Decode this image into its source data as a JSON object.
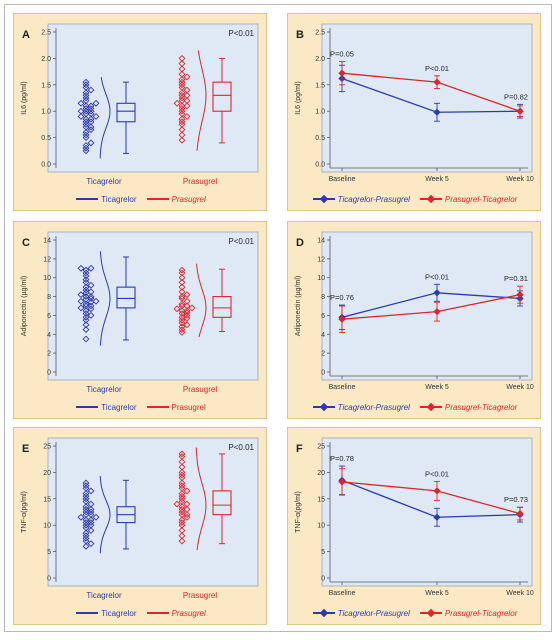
{
  "colors": {
    "ticagrelor": "#2e3aa8",
    "prasugrel": "#d8272e"
  },
  "chart_data": [
    {
      "id": "A",
      "panel_label": "A",
      "type": "box",
      "ylabel": "IL6 (pg/ml)",
      "ylim": [
        0,
        2.5
      ],
      "yticks": [
        "0.0",
        "0.5",
        "1.0",
        "1.5",
        "2.0",
        "2.5"
      ],
      "pvalue": "P<0.01",
      "groups": [
        {
          "name": "Ticagrelor",
          "min": 0.2,
          "q1": 0.8,
          "median": 1.0,
          "q3": 1.15,
          "max": 1.55,
          "points": [
            0.25,
            0.3,
            0.35,
            0.4,
            0.5,
            0.55,
            0.6,
            0.65,
            0.7,
            0.7,
            0.75,
            0.8,
            0.8,
            0.85,
            0.85,
            0.9,
            0.9,
            0.95,
            0.95,
            1.0,
            1.0,
            1.0,
            1.05,
            1.05,
            1.1,
            1.1,
            1.15,
            1.15,
            1.2,
            1.25,
            1.3,
            1.35,
            1.4,
            1.45,
            1.5,
            1.55
          ]
        },
        {
          "name": "Prasugrel",
          "min": 0.4,
          "q1": 1.0,
          "median": 1.3,
          "q3": 1.55,
          "max": 2.0,
          "points": [
            0.45,
            0.55,
            0.65,
            0.75,
            0.8,
            0.85,
            0.9,
            0.95,
            1.0,
            1.05,
            1.1,
            1.1,
            1.15,
            1.2,
            1.2,
            1.25,
            1.3,
            1.3,
            1.35,
            1.4,
            1.45,
            1.5,
            1.55,
            1.6,
            1.65,
            1.7,
            1.8,
            1.9,
            2.0
          ]
        }
      ],
      "legend": [
        "Ticagrelor",
        "Prasugrel"
      ]
    },
    {
      "id": "B",
      "panel_label": "B",
      "type": "line",
      "ylabel": "IL6 (pg/ml)",
      "ylim": [
        0,
        2.5
      ],
      "yticks": [
        "0.0",
        "0.5",
        "1.0",
        "1.5",
        "2.0",
        "2.5"
      ],
      "categories": [
        "Baseline",
        "Week 5",
        "Week 10"
      ],
      "pvalues": [
        "P=0.05",
        "P<0.01",
        "P=0.82"
      ],
      "series": [
        {
          "name": "Ticagrelor-Prasugrel",
          "values": [
            1.62,
            0.98,
            1.0
          ],
          "errors": [
            0.25,
            0.17,
            0.13
          ]
        },
        {
          "name": "Prasugrel-Ticagrelor",
          "values": [
            1.72,
            1.55,
            1.0
          ],
          "errors": [
            0.22,
            0.12,
            0.1
          ]
        }
      ]
    },
    {
      "id": "C",
      "panel_label": "C",
      "type": "box",
      "ylabel": "Adiponectin (µg/ml)",
      "ylim": [
        0,
        14
      ],
      "yticks": [
        "0",
        "2",
        "4",
        "6",
        "8",
        "10",
        "12",
        "14"
      ],
      "pvalue": "P<0.01",
      "groups": [
        {
          "name": "Ticagrelor",
          "min": 3.4,
          "q1": 6.8,
          "median": 7.8,
          "q3": 9.0,
          "max": 12.2,
          "points": [
            3.5,
            4.5,
            5.0,
            5.5,
            5.8,
            6.0,
            6.2,
            6.5,
            6.7,
            6.8,
            7.0,
            7.0,
            7.2,
            7.4,
            7.5,
            7.5,
            7.7,
            7.8,
            8.0,
            8.0,
            8.2,
            8.4,
            8.5,
            8.7,
            9.0,
            9.2,
            9.5,
            9.8,
            10.2,
            10.5,
            10.8,
            11.0,
            11.0
          ]
        },
        {
          "name": "Prasugrel",
          "min": 4.3,
          "q1": 5.8,
          "median": 6.8,
          "q3": 8.0,
          "max": 10.9,
          "points": [
            4.2,
            4.5,
            4.8,
            5.0,
            5.2,
            5.5,
            5.7,
            5.8,
            6.0,
            6.2,
            6.3,
            6.5,
            6.5,
            6.7,
            6.8,
            7.0,
            7.0,
            7.2,
            7.5,
            7.8,
            8.0,
            8.2,
            8.5,
            9.0,
            9.5,
            10.0,
            10.5,
            10.8
          ]
        }
      ],
      "legend": [
        "Ticagrelor",
        "Prasugrel"
      ]
    },
    {
      "id": "D",
      "panel_label": "D",
      "type": "line",
      "ylabel": "Adiponectin (µg/ml)",
      "ylim": [
        0,
        14
      ],
      "yticks": [
        "0",
        "2",
        "4",
        "6",
        "8",
        "10",
        "12",
        "14"
      ],
      "categories": [
        "Baseline",
        "Week 5",
        "Week 10"
      ],
      "pvalues": [
        "P=0.76",
        "P<0.01",
        "P=0.31"
      ],
      "series": [
        {
          "name": "Ticagrelor-Prasugrel",
          "values": [
            5.8,
            8.4,
            7.8
          ],
          "errors": [
            1.3,
            0.9,
            0.8
          ]
        },
        {
          "name": "Prasugrel-Ticagrelor",
          "values": [
            5.6,
            6.4,
            8.2
          ],
          "errors": [
            1.4,
            1.0,
            0.9
          ]
        }
      ]
    },
    {
      "id": "E",
      "panel_label": "E",
      "type": "box",
      "ylabel": "TNF-α(pg/ml)",
      "ylim": [
        0,
        25
      ],
      "yticks": [
        "0",
        "5",
        "10",
        "15",
        "20",
        "25"
      ],
      "pvalue": "P<0.01",
      "groups": [
        {
          "name": "Ticagrelor",
          "min": 5.5,
          "q1": 10.5,
          "median": 12.0,
          "q3": 13.5,
          "max": 18.5,
          "points": [
            6,
            6.5,
            7,
            7.5,
            8,
            8.5,
            9,
            9.5,
            10,
            10,
            10.5,
            10.5,
            11,
            11,
            11.5,
            11.5,
            12,
            12,
            12.5,
            12.5,
            13,
            13,
            13.5,
            14,
            14.5,
            15,
            15.5,
            16,
            16.5,
            17,
            17.5,
            18
          ]
        },
        {
          "name": "Prasugrel",
          "min": 6.5,
          "q1": 12.0,
          "median": 13.8,
          "q3": 16.5,
          "max": 23.5,
          "points": [
            7,
            8,
            9,
            10,
            10.5,
            11,
            11.5,
            12,
            12,
            12.5,
            13,
            13,
            13.5,
            14,
            14,
            14.5,
            15,
            15.5,
            16,
            16.5,
            17,
            17.5,
            18,
            19,
            19.5,
            20,
            21,
            22,
            23,
            23.5
          ]
        }
      ],
      "legend": [
        "Ticagrelor",
        "Prasugrel"
      ]
    },
    {
      "id": "F",
      "panel_label": "F",
      "type": "line",
      "ylabel": "TNF-α(pg/ml)",
      "ylim": [
        0,
        25
      ],
      "yticks": [
        "0",
        "5",
        "10",
        "15",
        "20",
        "25"
      ],
      "categories": [
        "Baseline",
        "Week 5",
        "Week 10"
      ],
      "pvalues": [
        "P=0.78",
        "P<0.01",
        "P=0.73"
      ],
      "series": [
        {
          "name": "Ticagrelor-Prasugrel",
          "values": [
            18.5,
            11.5,
            12.0
          ],
          "errors": [
            2.7,
            1.7,
            1.4
          ]
        },
        {
          "name": "Prasugrel-Ticagrelor",
          "values": [
            18.2,
            16.5,
            12.2
          ],
          "errors": [
            2.5,
            1.8,
            1.2
          ]
        }
      ]
    }
  ]
}
